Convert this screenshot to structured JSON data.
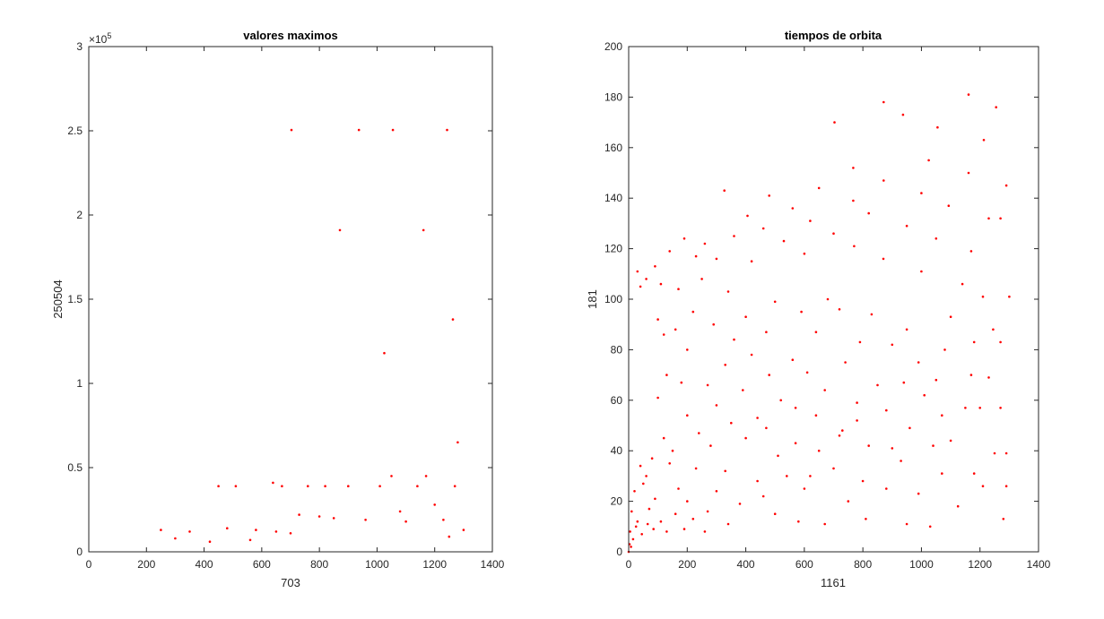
{
  "chart_data": [
    {
      "type": "scatter",
      "title": "valores maximos",
      "xlabel": "703",
      "ylabel": "250504",
      "xlim": [
        0,
        1400
      ],
      "ylim": [
        0,
        300000
      ],
      "xticks": [
        "0",
        "200",
        "400",
        "600",
        "800",
        "1000",
        "1200",
        "1400"
      ],
      "yticks": [
        "0",
        "0.5",
        "1",
        "1.5",
        "2",
        "2.5",
        "3"
      ],
      "yexponent": "×10",
      "yexponent_power": "5",
      "grid": false,
      "marker_color": "#ff0000",
      "series": [
        {
          "points": [
            [
              703,
              250504
            ],
            [
              937,
              250504
            ],
            [
              1055,
              250504
            ],
            [
              1243,
              250504
            ],
            [
              871,
              190996
            ],
            [
              1161,
              190996
            ],
            [
              1263,
              138000
            ],
            [
              1025,
              118000
            ],
            [
              1280,
              65000
            ],
            [
              639,
              41000
            ],
            [
              450,
              39000
            ],
            [
              510,
              39000
            ],
            [
              670,
              39000
            ],
            [
              760,
              39000
            ],
            [
              820,
              39000
            ],
            [
              900,
              39000
            ],
            [
              1010,
              39000
            ],
            [
              1140,
              39000
            ],
            [
              1270,
              39000
            ],
            [
              1050,
              45000
            ],
            [
              1170,
              45000
            ],
            [
              1200,
              28000
            ],
            [
              1080,
              24000
            ],
            [
              730,
              22000
            ],
            [
              800,
              21000
            ],
            [
              850,
              20000
            ],
            [
              960,
              19000
            ],
            [
              1100,
              18000
            ],
            [
              1230,
              19000
            ],
            [
              480,
              14000
            ],
            [
              580,
              13000
            ],
            [
              250,
              13000
            ],
            [
              350,
              12000
            ],
            [
              650,
              12000
            ],
            [
              700,
              11000
            ],
            [
              1300,
              13000
            ],
            [
              1250,
              9000
            ],
            [
              300,
              8000
            ],
            [
              420,
              6000
            ],
            [
              560,
              7000
            ]
          ]
        }
      ]
    },
    {
      "type": "scatter",
      "title": "tiempos de orbita",
      "xlabel": "1161",
      "ylabel": "181",
      "xlim": [
        0,
        1400
      ],
      "ylim": [
        0,
        200
      ],
      "xticks": [
        "0",
        "200",
        "400",
        "600",
        "800",
        "1000",
        "1200",
        "1400"
      ],
      "yticks": [
        "0",
        "20",
        "40",
        "60",
        "80",
        "100",
        "120",
        "140",
        "160",
        "180",
        "200"
      ],
      "grid": false,
      "marker_color": "#ff0000",
      "series": [
        {
          "points": [
            [
              1161,
              181
            ],
            [
              871,
              178
            ],
            [
              937,
              173
            ],
            [
              703,
              170
            ],
            [
              1255,
              176
            ],
            [
              1213,
              163
            ],
            [
              1055,
              168
            ],
            [
              1025,
              155
            ],
            [
              1161,
              150
            ],
            [
              767,
              152
            ],
            [
              871,
              147
            ],
            [
              650,
              144
            ],
            [
              327,
              143
            ],
            [
              1000,
              142
            ],
            [
              1290,
              145
            ],
            [
              767,
              139
            ],
            [
              480,
              141
            ],
            [
              560,
              136
            ],
            [
              1093,
              137
            ],
            [
              1230,
              132
            ],
            [
              406,
              133
            ],
            [
              620,
              131
            ],
            [
              820,
              134
            ],
            [
              950,
              129
            ],
            [
              700,
              126
            ],
            [
              260,
              122
            ],
            [
              360,
              125
            ],
            [
              460,
              128
            ],
            [
              530,
              123
            ],
            [
              870,
              116
            ],
            [
              1050,
              124
            ],
            [
              1170,
              119
            ],
            [
              190,
              124
            ],
            [
              300,
              116
            ],
            [
              770,
              121
            ],
            [
              1000,
              111
            ],
            [
              1270,
              132
            ],
            [
              140,
              119
            ],
            [
              230,
              117
            ],
            [
              420,
              115
            ],
            [
              600,
              118
            ],
            [
              680,
              100
            ],
            [
              1140,
              106
            ],
            [
              1210,
              101
            ],
            [
              90,
              113
            ],
            [
              30,
              111
            ],
            [
              60,
              108
            ],
            [
              110,
              106
            ],
            [
              170,
              104
            ],
            [
              250,
              108
            ],
            [
              340,
              103
            ],
            [
              500,
              99
            ],
            [
              590,
              95
            ],
            [
              830,
              94
            ],
            [
              1100,
              93
            ],
            [
              1300,
              101
            ],
            [
              40,
              105
            ],
            [
              100,
              92
            ],
            [
              160,
              88
            ],
            [
              220,
              95
            ],
            [
              290,
              90
            ],
            [
              400,
              93
            ],
            [
              720,
              96
            ],
            [
              950,
              88
            ],
            [
              1080,
              80
            ],
            [
              1245,
              88
            ],
            [
              120,
              86
            ],
            [
              200,
              80
            ],
            [
              360,
              84
            ],
            [
              470,
              87
            ],
            [
              640,
              87
            ],
            [
              790,
              83
            ],
            [
              900,
              82
            ],
            [
              1180,
              83
            ],
            [
              130,
              70
            ],
            [
              330,
              74
            ],
            [
              420,
              78
            ],
            [
              560,
              76
            ],
            [
              740,
              75
            ],
            [
              990,
              75
            ],
            [
              1170,
              70
            ],
            [
              1270,
              83
            ],
            [
              270,
              66
            ],
            [
              480,
              70
            ],
            [
              610,
              71
            ],
            [
              850,
              66
            ],
            [
              1050,
              68
            ],
            [
              1230,
              69
            ],
            [
              180,
              67
            ],
            [
              390,
              64
            ],
            [
              670,
              64
            ],
            [
              780,
              59
            ],
            [
              940,
              67
            ],
            [
              1150,
              57
            ],
            [
              300,
              58
            ],
            [
              520,
              60
            ],
            [
              570,
              57
            ],
            [
              880,
              56
            ],
            [
              1010,
              62
            ],
            [
              1270,
              57
            ],
            [
              100,
              61
            ],
            [
              200,
              54
            ],
            [
              440,
              53
            ],
            [
              640,
              54
            ],
            [
              730,
              48
            ],
            [
              960,
              49
            ],
            [
              1070,
              54
            ],
            [
              1200,
              57
            ],
            [
              120,
              45
            ],
            [
              240,
              47
            ],
            [
              350,
              51
            ],
            [
              470,
              49
            ],
            [
              570,
              43
            ],
            [
              780,
              52
            ],
            [
              820,
              42
            ],
            [
              1100,
              44
            ],
            [
              1250,
              39
            ],
            [
              80,
              37
            ],
            [
              150,
              40
            ],
            [
              280,
              42
            ],
            [
              400,
              45
            ],
            [
              510,
              38
            ],
            [
              650,
              40
            ],
            [
              720,
              46
            ],
            [
              900,
              41
            ],
            [
              1040,
              42
            ],
            [
              1290,
              39
            ],
            [
              40,
              34
            ],
            [
              60,
              30
            ],
            [
              140,
              35
            ],
            [
              230,
              33
            ],
            [
              330,
              32
            ],
            [
              440,
              28
            ],
            [
              540,
              30
            ],
            [
              600,
              25
            ],
            [
              700,
              33
            ],
            [
              800,
              28
            ],
            [
              930,
              36
            ],
            [
              1070,
              31
            ],
            [
              1180,
              31
            ],
            [
              1290,
              26
            ],
            [
              20,
              24
            ],
            [
              50,
              27
            ],
            [
              90,
              21
            ],
            [
              170,
              25
            ],
            [
              200,
              20
            ],
            [
              300,
              24
            ],
            [
              380,
              19
            ],
            [
              460,
              22
            ],
            [
              620,
              30
            ],
            [
              750,
              20
            ],
            [
              880,
              25
            ],
            [
              990,
              23
            ],
            [
              1125,
              18
            ],
            [
              1210,
              26
            ],
            [
              10,
              16
            ],
            [
              30,
              12
            ],
            [
              70,
              17
            ],
            [
              110,
              12
            ],
            [
              160,
              15
            ],
            [
              220,
              13
            ],
            [
              270,
              16
            ],
            [
              340,
              11
            ],
            [
              500,
              15
            ],
            [
              580,
              12
            ],
            [
              670,
              11
            ],
            [
              810,
              13
            ],
            [
              950,
              11
            ],
            [
              1030,
              10
            ],
            [
              1280,
              13
            ],
            [
              5,
              8
            ],
            [
              15,
              5
            ],
            [
              25,
              10
            ],
            [
              45,
              7
            ],
            [
              65,
              11
            ],
            [
              85,
              9
            ],
            [
              130,
              8
            ],
            [
              190,
              9
            ],
            [
              260,
              8
            ],
            [
              0,
              0
            ],
            [
              3,
              3
            ],
            [
              8,
              2
            ]
          ]
        }
      ]
    }
  ]
}
